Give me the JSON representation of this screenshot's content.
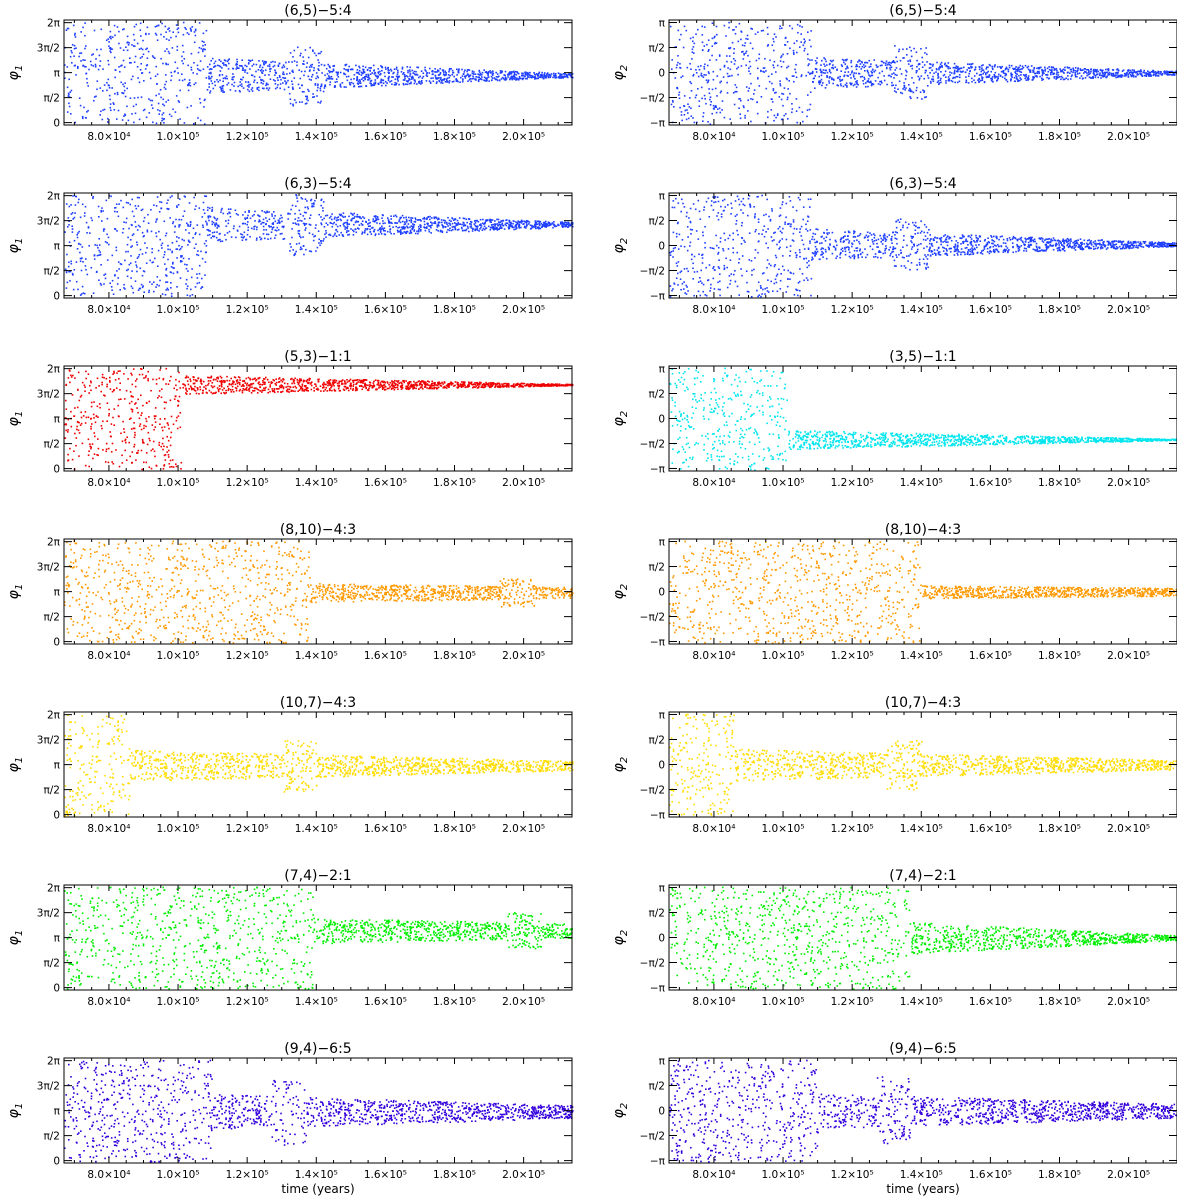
{
  "x_axis": {
    "xlim": [
      67000,
      214000
    ],
    "ticks": [
      80000,
      100000,
      120000,
      140000,
      160000,
      180000,
      200000
    ],
    "tick_labels": [
      "8.0×10⁴",
      "1.0×10⁵",
      "1.2×10⁵",
      "1.4×10⁵",
      "1.6×10⁵",
      "1.8×10⁵",
      "2.0×10⁵"
    ],
    "label": "time (years)"
  },
  "phi1_axis": {
    "label": "φ1",
    "ylim": [
      -0.15,
      6.45
    ],
    "ticks": [
      0,
      1.5708,
      3.1416,
      4.7124,
      6.2832
    ],
    "tick_labels": [
      "0",
      "π/2",
      "π",
      "3π/2",
      "2π"
    ]
  },
  "phi2_axis": {
    "label": "φ2",
    "ylim": [
      -3.3,
      3.3
    ],
    "ticks": [
      -3.1416,
      -1.5708,
      0,
      1.5708,
      3.1416
    ],
    "tick_labels": [
      "−π",
      "−π/2",
      "0",
      "π/2",
      "π"
    ]
  },
  "chart_data": [
    {
      "type": "scatter",
      "title": "(6,5)−5:4",
      "ylabel": "φ1",
      "color": "#1f3fff",
      "x_chaotic_until": 108000,
      "settle_center": 3.0,
      "amp_initial": 1.1,
      "amp_final": 0.12,
      "burst_at": 137000,
      "ylim": [
        -0.15,
        6.45
      ],
      "xlim": [
        67000,
        214000
      ]
    },
    {
      "type": "scatter",
      "title": "(6,5)−5:4",
      "ylabel": "φ2",
      "color": "#1f3fff",
      "x_chaotic_until": 108000,
      "settle_center": 0.0,
      "amp_initial": 1.0,
      "amp_final": 0.12,
      "burst_at": 137000,
      "ylim": [
        -3.3,
        3.3
      ],
      "xlim": [
        67000,
        214000
      ]
    },
    {
      "type": "scatter",
      "title": "(6,3)−5:4",
      "ylabel": "φ1",
      "color": "#1f3fff",
      "x_chaotic_until": 108000,
      "settle_center": 4.5,
      "amp_initial": 1.1,
      "amp_final": 0.15,
      "burst_at": 137000,
      "ylim": [
        -0.15,
        6.45
      ],
      "xlim": [
        67000,
        214000
      ]
    },
    {
      "type": "scatter",
      "title": "(6,3)−5:4",
      "ylabel": "φ2",
      "color": "#1f3fff",
      "x_chaotic_until": 108000,
      "settle_center": 0.1,
      "amp_initial": 1.0,
      "amp_final": 0.12,
      "burst_at": 137000,
      "ylim": [
        -3.3,
        3.3
      ],
      "xlim": [
        67000,
        214000
      ]
    },
    {
      "type": "scatter",
      "title": "(5,3)−1:1",
      "ylabel": "φ1",
      "color": "#ee0000",
      "x_chaotic_until": 101000,
      "settle_center": 5.3,
      "amp_initial": 0.6,
      "amp_final": 0.04,
      "burst_at": 0,
      "ylim": [
        -0.15,
        6.45
      ],
      "xlim": [
        67000,
        214000
      ]
    },
    {
      "type": "scatter",
      "title": "(3,5)−1:1",
      "ylabel": "φ2",
      "color": "#00e5ee",
      "x_chaotic_until": 101000,
      "settle_center": -1.3,
      "amp_initial": 0.6,
      "amp_final": 0.04,
      "burst_at": 0,
      "ylim": [
        -3.3,
        3.3
      ],
      "xlim": [
        67000,
        214000
      ]
    },
    {
      "type": "scatter",
      "title": "(8,10)−4:3",
      "ylabel": "φ1",
      "color": "#ff9900",
      "x_chaotic_until": 138000,
      "settle_center": 3.1,
      "amp_initial": 0.6,
      "amp_final": 0.35,
      "burst_at": 198000,
      "ylim": [
        -0.15,
        6.45
      ],
      "xlim": [
        67000,
        214000
      ]
    },
    {
      "type": "scatter",
      "title": "(8,10)−4:3",
      "ylabel": "φ2",
      "color": "#ff9900",
      "x_chaotic_until": 140000,
      "settle_center": 0.0,
      "amp_initial": 0.4,
      "amp_final": 0.25,
      "burst_at": 0,
      "ylim": [
        -3.3,
        3.3
      ],
      "xlim": [
        67000,
        214000
      ]
    },
    {
      "type": "scatter",
      "title": "(10,7)−4:3",
      "ylabel": "φ1",
      "color": "#ffdd00",
      "x_chaotic_until": 86000,
      "settle_center": 3.1,
      "amp_initial": 1.0,
      "amp_final": 0.3,
      "burst_at": 135000,
      "ylim": [
        -0.15,
        6.45
      ],
      "xlim": [
        67000,
        214000
      ]
    },
    {
      "type": "scatter",
      "title": "(10,7)−4:3",
      "ylabel": "φ2",
      "color": "#ffdd00",
      "x_chaotic_until": 86000,
      "settle_center": 0.0,
      "amp_initial": 1.0,
      "amp_final": 0.3,
      "burst_at": 135000,
      "ylim": [
        -3.3,
        3.3
      ],
      "xlim": [
        67000,
        214000
      ]
    },
    {
      "type": "scatter",
      "title": "(7,4)−2:1",
      "ylabel": "φ1",
      "color": "#00ee00",
      "x_chaotic_until": 139000,
      "settle_center": 3.6,
      "amp_initial": 0.8,
      "amp_final": 0.45,
      "burst_at": 200000,
      "ylim": [
        -0.15,
        6.45
      ],
      "xlim": [
        67000,
        214000
      ]
    },
    {
      "type": "scatter",
      "title": "(7,4)−2:1",
      "ylabel": "φ2",
      "color": "#00ee00",
      "x_chaotic_until": 137000,
      "settle_center": 0.0,
      "amp_initial": 1.0,
      "amp_final": 0.15,
      "burst_at": 0,
      "ylim": [
        -3.3,
        3.3
      ],
      "xlim": [
        67000,
        214000
      ]
    },
    {
      "type": "scatter",
      "title": "(9,4)−6:5",
      "ylabel": "φ1",
      "color": "#3300dd",
      "x_chaotic_until": 110000,
      "settle_center": 3.1,
      "amp_initial": 1.1,
      "amp_final": 0.4,
      "burst_at": 132000,
      "ylim": [
        -0.15,
        6.45
      ],
      "xlim": [
        67000,
        214000
      ]
    },
    {
      "type": "scatter",
      "title": "(9,4)−6:5",
      "ylabel": "φ2",
      "color": "#3300dd",
      "x_chaotic_until": 110000,
      "settle_center": 0.0,
      "amp_initial": 1.1,
      "amp_final": 0.45,
      "burst_at": 132000,
      "ylim": [
        -3.3,
        3.3
      ],
      "xlim": [
        67000,
        214000
      ]
    }
  ]
}
